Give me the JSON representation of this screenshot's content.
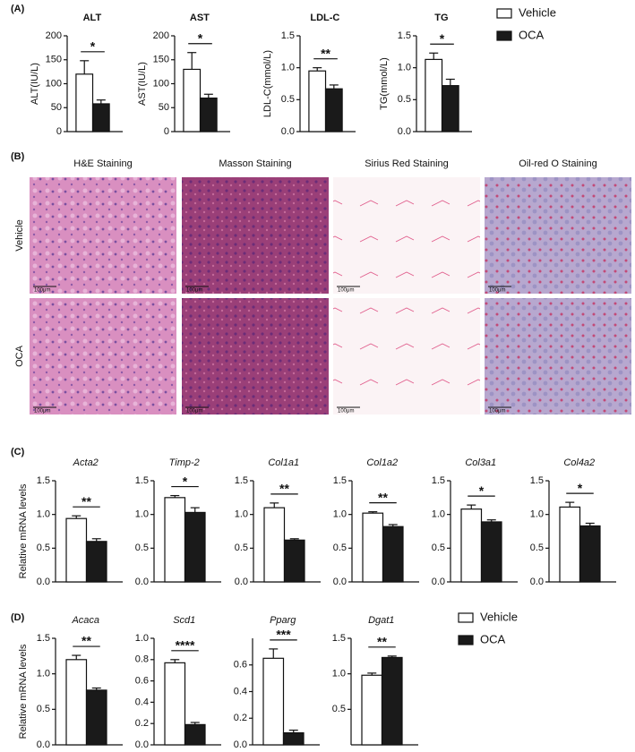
{
  "panel_labels": [
    "(A)",
    "(B)",
    "(C)",
    "(D)"
  ],
  "legends": [
    {
      "entries": [
        {
          "name": "Vehicle",
          "color": "#ffffff"
        },
        {
          "name": "OCA",
          "color": "#1a1a1a"
        }
      ]
    },
    {
      "entries": [
        {
          "name": "Vehicle",
          "color": "#ffffff"
        },
        {
          "name": "OCA",
          "color": "#1a1a1a"
        }
      ]
    }
  ],
  "staining": {
    "columns": [
      "H&E Staining",
      "Masson Staining",
      "Sirius Red Staining",
      "Oil-red O Staining"
    ],
    "rows": [
      "Vehicle",
      "OCA"
    ],
    "scale_bar": "100μm"
  },
  "chart_data": [
    {
      "type": "bar",
      "title": "ALT",
      "ylabel": "ALT(IU/L)",
      "values": [
        120,
        58
      ],
      "errors": [
        28,
        8
      ],
      "colors": [
        "#ffffff",
        "#1a1a1a"
      ],
      "significance": "*",
      "ylim": [
        0,
        200
      ],
      "yticks": [
        0,
        50,
        100,
        150,
        200
      ]
    },
    {
      "type": "bar",
      "title": "AST",
      "ylabel": "AST(IU/L)",
      "values": [
        130,
        70
      ],
      "errors": [
        35,
        8
      ],
      "colors": [
        "#ffffff",
        "#1a1a1a"
      ],
      "significance": "*",
      "ylim": [
        0,
        200
      ],
      "yticks": [
        0,
        50,
        100,
        150,
        200
      ]
    },
    {
      "type": "bar",
      "title": "LDL-C",
      "ylabel": "LDL-C(mmol/L)",
      "values": [
        0.95,
        0.67
      ],
      "errors": [
        0.05,
        0.06
      ],
      "colors": [
        "#ffffff",
        "#1a1a1a"
      ],
      "significance": "**",
      "ylim": [
        0,
        1.5
      ],
      "yticks": [
        {
          "value": 0,
          "label": "0.0"
        },
        0.5,
        {
          "value": 1,
          "label": "1.0"
        },
        1.5
      ]
    },
    {
      "type": "bar",
      "title": "TG",
      "ylabel": "TG(mmol/L)",
      "values": [
        1.13,
        0.72
      ],
      "errors": [
        0.1,
        0.1
      ],
      "colors": [
        "#ffffff",
        "#1a1a1a"
      ],
      "significance": "*",
      "ylim": [
        0,
        1.5
      ],
      "yticks": [
        {
          "value": 0,
          "label": "0.0"
        },
        0.5,
        {
          "value": 1,
          "label": "1.0"
        },
        1.5
      ]
    },
    {
      "type": "bar",
      "title": "Acta2",
      "ylabel": "Relative mRNA levels",
      "values": [
        0.94,
        0.6
      ],
      "errors": [
        0.04,
        0.04
      ],
      "colors": [
        "#ffffff",
        "#1a1a1a"
      ],
      "significance": "**",
      "ylim": [
        0,
        1.5
      ],
      "yticks": [
        {
          "value": 0,
          "label": "0.0"
        },
        0.5,
        {
          "value": 1,
          "label": "1.0"
        },
        1.5
      ]
    },
    {
      "type": "bar",
      "title": "Timp-2",
      "values": [
        1.25,
        1.03
      ],
      "errors": [
        0.03,
        0.07
      ],
      "colors": [
        "#ffffff",
        "#1a1a1a"
      ],
      "significance": "*",
      "ylim": [
        0,
        1.5
      ],
      "yticks": [
        {
          "value": 0,
          "label": "0.0"
        },
        0.5,
        {
          "value": 1,
          "label": "1.0"
        },
        1.5
      ]
    },
    {
      "type": "bar",
      "title": "Col1a1",
      "values": [
        1.1,
        0.62
      ],
      "errors": [
        0.07,
        0.02
      ],
      "colors": [
        "#ffffff",
        "#1a1a1a"
      ],
      "significance": "**",
      "ylim": [
        0,
        1.5
      ],
      "yticks": [
        {
          "value": 0,
          "label": "0.0"
        },
        0.5,
        {
          "value": 1,
          "label": "1.0"
        },
        1.5
      ]
    },
    {
      "type": "bar",
      "title": "Col1a2",
      "values": [
        1.02,
        0.82
      ],
      "errors": [
        0.02,
        0.03
      ],
      "colors": [
        "#ffffff",
        "#1a1a1a"
      ],
      "significance": "**",
      "ylim": [
        0,
        1.5
      ],
      "yticks": [
        {
          "value": 0,
          "label": "0.0"
        },
        0.5,
        {
          "value": 1,
          "label": "1.0"
        },
        1.5
      ]
    },
    {
      "type": "bar",
      "title": "Col3a1",
      "values": [
        1.08,
        0.89
      ],
      "errors": [
        0.06,
        0.03
      ],
      "colors": [
        "#ffffff",
        "#1a1a1a"
      ],
      "significance": "*",
      "ylim": [
        0,
        1.5
      ],
      "yticks": [
        {
          "value": 0,
          "label": "0.0"
        },
        0.5,
        {
          "value": 1,
          "label": "1.0"
        },
        1.5
      ]
    },
    {
      "type": "bar",
      "title": "Col4a2",
      "values": [
        1.11,
        0.83
      ],
      "errors": [
        0.07,
        0.04
      ],
      "colors": [
        "#ffffff",
        "#1a1a1a"
      ],
      "significance": "*",
      "ylim": [
        0,
        1.5
      ],
      "yticks": [
        {
          "value": 0,
          "label": "0.0"
        },
        0.5,
        {
          "value": 1,
          "label": "1.0"
        },
        1.5
      ]
    },
    {
      "type": "bar",
      "title": "Acaca",
      "ylabel": "Relative mRNA levels",
      "values": [
        1.2,
        0.77
      ],
      "errors": [
        0.06,
        0.03
      ],
      "colors": [
        "#ffffff",
        "#1a1a1a"
      ],
      "significance": "**",
      "ylim": [
        0,
        1.5
      ],
      "yticks": [
        {
          "value": 0,
          "label": "0.0"
        },
        0.5,
        {
          "value": 1,
          "label": "1.0"
        },
        1.5
      ]
    },
    {
      "type": "bar",
      "title": "Scd1",
      "values": [
        0.77,
        0.19
      ],
      "errors": [
        0.03,
        0.02
      ],
      "colors": [
        "#ffffff",
        "#1a1a1a"
      ],
      "significance": "****",
      "ylim": [
        0,
        1
      ],
      "yticks": [
        {
          "value": 0,
          "label": "0.0"
        },
        0.2,
        0.4,
        0.6,
        0.8,
        {
          "value": 1,
          "label": "1.0"
        }
      ]
    },
    {
      "type": "bar",
      "title": "Pparg",
      "values": [
        0.65,
        0.09
      ],
      "errors": [
        0.07,
        0.02
      ],
      "colors": [
        "#ffffff",
        "#1a1a1a"
      ],
      "significance": "***",
      "ylim": [
        0,
        0.8
      ],
      "yticks": [
        {
          "value": 0,
          "label": "0.0"
        },
        0.2,
        0.4,
        0.6
      ]
    },
    {
      "type": "bar",
      "title": "Dgat1",
      "values": [
        0.98,
        1.23
      ],
      "errors": [
        0.03,
        0.02
      ],
      "colors": [
        "#ffffff",
        "#1a1a1a"
      ],
      "significance": "**",
      "ylim": [
        0,
        1.5
      ],
      "yticks": [
        0.5,
        {
          "value": 1,
          "label": "1.0"
        },
        1.5
      ]
    }
  ]
}
